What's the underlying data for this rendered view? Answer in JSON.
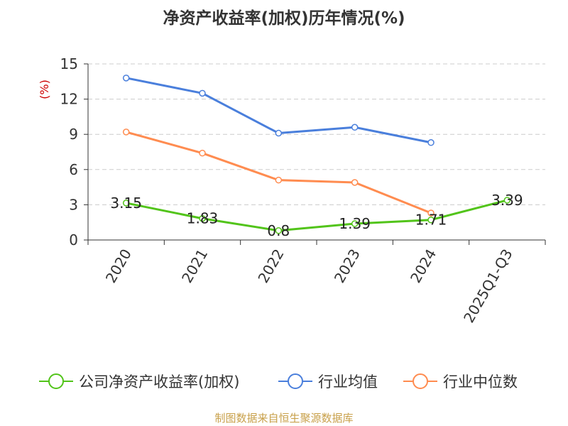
{
  "chart_data": {
    "type": "line",
    "title": "净资产收益率(加权)历年情况(%)",
    "ylabel": "(%)",
    "xlabel": "",
    "categories": [
      "2020",
      "2021",
      "2022",
      "2023",
      "2024",
      "2025Q1-Q3"
    ],
    "ylim": [
      0,
      15
    ],
    "yticks": [
      0,
      3,
      6,
      9,
      12,
      15
    ],
    "grid": true,
    "legend_position": "bottom",
    "series": [
      {
        "name": "公司净资产收益率(加权)",
        "color": "#52c41a",
        "values": [
          3.15,
          1.83,
          0.8,
          1.39,
          1.71,
          3.39
        ],
        "labels": [
          "3.15",
          "1.83",
          "0.8",
          "1.39",
          "1.71",
          "3.39"
        ]
      },
      {
        "name": "行业均值",
        "color": "#4a7fdc",
        "values": [
          13.8,
          12.5,
          9.1,
          9.6,
          8.3,
          null
        ]
      },
      {
        "name": "行业中位数",
        "color": "#ff8c50",
        "values": [
          9.2,
          7.4,
          5.1,
          4.9,
          2.3,
          null
        ]
      }
    ]
  },
  "footer": {
    "source": "制图数据来自恒生聚源数据库"
  },
  "colors": {
    "axis": "#333333",
    "grid": "#cccccc",
    "ylabel": "#cc0000",
    "footer": "#c8a04a"
  }
}
